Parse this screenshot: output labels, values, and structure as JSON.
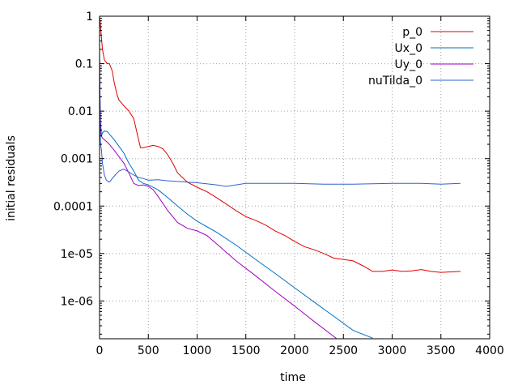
{
  "chart_data": {
    "type": "line",
    "title": "",
    "xlabel": "time",
    "ylabel": "initial residuals",
    "xlim": [
      0,
      4000
    ],
    "ylim": [
      1.6e-07,
      1
    ],
    "yscale": "log",
    "grid": true,
    "legend_position": "top-right",
    "x_ticks": [
      0,
      500,
      1000,
      1500,
      2000,
      2500,
      3000,
      3500,
      4000
    ],
    "x_tick_labels": [
      "0",
      "500",
      "1000",
      "1500",
      "2000",
      "2500",
      "3000",
      "3500",
      "4000"
    ],
    "y_ticks": [
      1e-06,
      1e-05,
      0.0001,
      0.001,
      0.01,
      0.1,
      1
    ],
    "y_tick_labels": [
      "1e-06",
      "1e-05",
      "0.0001",
      "0.001",
      "0.01",
      "0.1",
      "1"
    ],
    "series": [
      {
        "name": "p_0",
        "color": "#e00000",
        "x": [
          0,
          5,
          10,
          20,
          30,
          50,
          80,
          100,
          130,
          150,
          180,
          200,
          250,
          300,
          350,
          400,
          420,
          450,
          500,
          550,
          600,
          650,
          700,
          750,
          800,
          900,
          1000,
          1100,
          1200,
          1300,
          1400,
          1500,
          1600,
          1700,
          1800,
          1900,
          2000,
          2100,
          2200,
          2300,
          2400,
          2500,
          2600,
          2700,
          2800,
          2900,
          3000,
          3100,
          3200,
          3300,
          3400,
          3500,
          3600,
          3700
        ],
        "y": [
          1.0,
          0.8,
          0.6,
          0.35,
          0.2,
          0.12,
          0.1,
          0.1,
          0.07,
          0.04,
          0.022,
          0.017,
          0.013,
          0.01,
          0.007,
          0.0025,
          0.0017,
          0.0017,
          0.0018,
          0.0019,
          0.0018,
          0.0016,
          0.0012,
          0.0008,
          0.0005,
          0.00032,
          0.00025,
          0.0002,
          0.00015,
          0.00011,
          8e-05,
          6e-05,
          5e-05,
          4e-05,
          3e-05,
          2.4e-05,
          1.8e-05,
          1.4e-05,
          1.2e-05,
          1e-05,
          8e-06,
          7.5e-06,
          7e-06,
          5.5e-06,
          4.2e-06,
          4.2e-06,
          4.5e-06,
          4.2e-06,
          4.3e-06,
          4.6e-06,
          4.2e-06,
          4e-06,
          4.1e-06,
          4.2e-06
        ]
      },
      {
        "name": "Ux_0",
        "color": "#0070c0",
        "x": [
          0,
          5,
          10,
          20,
          30,
          50,
          80,
          100,
          150,
          200,
          250,
          300,
          350,
          400,
          450,
          500,
          600,
          700,
          800,
          900,
          1000,
          1200,
          1400,
          1600,
          1800,
          2000,
          2200,
          2400,
          2600,
          2800
        ],
        "y": [
          0.2,
          0.02,
          0.006,
          0.003,
          0.0035,
          0.0038,
          0.0037,
          0.0033,
          0.0025,
          0.0018,
          0.0013,
          0.0008,
          0.00055,
          0.00035,
          0.0003,
          0.00028,
          0.00022,
          0.00015,
          0.0001,
          6.8e-05,
          4.8e-05,
          2.8e-05,
          1.5e-05,
          7.5e-06,
          3.8e-06,
          1.9e-06,
          9.5e-07,
          4.8e-07,
          2.4e-07,
          1.65e-07
        ]
      },
      {
        "name": "Uy_0",
        "color": "#a000c0",
        "x": [
          0,
          5,
          10,
          20,
          30,
          50,
          80,
          100,
          150,
          200,
          250,
          300,
          350,
          400,
          450,
          500,
          550,
          600,
          700,
          800,
          900,
          1000,
          1100,
          1200,
          1400,
          1600,
          1800,
          2000,
          2200,
          2400,
          2600
        ],
        "y": [
          0.15,
          0.01,
          0.004,
          0.003,
          0.0027,
          0.0025,
          0.0022,
          0.002,
          0.0015,
          0.0011,
          0.0008,
          0.0005,
          0.0003,
          0.00027,
          0.00028,
          0.00026,
          0.00022,
          0.00016,
          8e-05,
          4.5e-05,
          3.4e-05,
          3e-05,
          2.4e-05,
          1.6e-05,
          7e-06,
          3.4e-06,
          1.6e-06,
          7.8e-07,
          3.7e-07,
          1.8e-07,
          8.5e-08
        ]
      },
      {
        "name": "nuTilda_0",
        "color": "#3060d0",
        "x": [
          0,
          5,
          10,
          20,
          30,
          50,
          70,
          100,
          130,
          160,
          200,
          250,
          300,
          350,
          400,
          450,
          500,
          600,
          700,
          800,
          1000,
          1200,
          1300,
          1400,
          1500,
          1700,
          2000,
          2300,
          2600,
          3000,
          3300,
          3500,
          3700
        ],
        "y": [
          0.02,
          0.005,
          0.002,
          0.0015,
          0.0008,
          0.00045,
          0.00035,
          0.00032,
          0.00038,
          0.00045,
          0.00055,
          0.0006,
          0.00052,
          0.00045,
          0.0004,
          0.00038,
          0.00035,
          0.00036,
          0.00034,
          0.00033,
          0.00031,
          0.00028,
          0.00026,
          0.00028,
          0.0003,
          0.0003,
          0.0003,
          0.00029,
          0.00029,
          0.0003,
          0.0003,
          0.00029,
          0.0003
        ]
      }
    ]
  }
}
